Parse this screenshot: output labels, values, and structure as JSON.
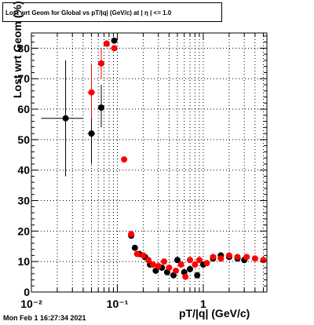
{
  "title": "Lost wrt Geom for Global vs pT/|q| (GeV/c) at | η | <= 1.0",
  "datestamp": "Mon Feb  1 16:27:34 2021",
  "colors": {
    "series_black": "#000000",
    "series_red": "#ff0000",
    "grid": "#000000"
  },
  "chart_data": {
    "type": "scatter",
    "title": "Lost wrt Geom for Global vs pT/|q| (GeV/c) at | η | <= 1.0",
    "xlabel": "pT/|q| (GeV/c)",
    "ylabel": "Lost wrt Geom (%)",
    "xscale": "log",
    "xlim": [
      0.01,
      5.5
    ],
    "ylim": [
      0,
      85
    ],
    "grid": true,
    "x_tick_labels": [
      "10⁻²",
      "10⁻¹",
      "1"
    ],
    "y_tick_labels": [
      "0",
      "10",
      "20",
      "30",
      "40",
      "50",
      "60",
      "70",
      "80"
    ],
    "series": [
      {
        "color": "#000000",
        "points": [
          {
            "x": 0.025,
            "y": 57.0,
            "xerr": [
              0.013,
              0.04
            ],
            "yerr": [
              38,
              76
            ]
          },
          {
            "x": 0.05,
            "y": 52.0,
            "xerr": [
              0.045,
              0.055
            ],
            "yerr": [
              42,
              62
            ]
          },
          {
            "x": 0.065,
            "y": 60.5,
            "xerr": [
              0.06,
              0.07
            ],
            "yerr": [
              54,
              68
            ]
          },
          {
            "x": 0.075,
            "y": 81.5
          },
          {
            "x": 0.092,
            "y": 82.5
          },
          {
            "x": 0.145,
            "y": 18.5
          },
          {
            "x": 0.16,
            "y": 14.5
          },
          {
            "x": 0.18,
            "y": 12.5
          },
          {
            "x": 0.21,
            "y": 11.5
          },
          {
            "x": 0.24,
            "y": 9.0
          },
          {
            "x": 0.28,
            "y": 7.0
          },
          {
            "x": 0.33,
            "y": 8.0
          },
          {
            "x": 0.38,
            "y": 6.5
          },
          {
            "x": 0.45,
            "y": 5.5
          },
          {
            "x": 0.5,
            "y": 10.5
          },
          {
            "x": 0.6,
            "y": 6.5
          },
          {
            "x": 0.7,
            "y": 7.5
          },
          {
            "x": 0.85,
            "y": 5.5
          },
          {
            "x": 1.0,
            "y": 9.0
          },
          {
            "x": 1.3,
            "y": 11.0
          },
          {
            "x": 1.6,
            "y": 12.0
          },
          {
            "x": 2.0,
            "y": 11.5
          },
          {
            "x": 2.5,
            "y": 11.0
          },
          {
            "x": 3.0,
            "y": 10.5
          }
        ]
      },
      {
        "color": "#ff0000",
        "points": [
          {
            "x": 0.05,
            "y": 65.5,
            "xerr": [
              0.045,
              0.055
            ],
            "yerr": [
              57,
              75
            ]
          },
          {
            "x": 0.065,
            "y": 75.0,
            "xerr": [
              0.06,
              0.07
            ],
            "yerr": [
              70,
              80
            ]
          },
          {
            "x": 0.075,
            "y": 81.5
          },
          {
            "x": 0.092,
            "y": 80.0
          },
          {
            "x": 0.12,
            "y": 43.5
          },
          {
            "x": 0.145,
            "y": 19.0
          },
          {
            "x": 0.17,
            "y": 12.5
          },
          {
            "x": 0.2,
            "y": 12.0
          },
          {
            "x": 0.23,
            "y": 10.5
          },
          {
            "x": 0.26,
            "y": 9.0
          },
          {
            "x": 0.3,
            "y": 8.5
          },
          {
            "x": 0.35,
            "y": 10.0
          },
          {
            "x": 0.4,
            "y": 8.0
          },
          {
            "x": 0.48,
            "y": 7.0
          },
          {
            "x": 0.55,
            "y": 9.0
          },
          {
            "x": 0.62,
            "y": 5.0
          },
          {
            "x": 0.7,
            "y": 10.5
          },
          {
            "x": 0.8,
            "y": 9.0
          },
          {
            "x": 0.9,
            "y": 10.5
          },
          {
            "x": 1.1,
            "y": 9.5
          },
          {
            "x": 1.3,
            "y": 11.5
          },
          {
            "x": 1.6,
            "y": 11.0
          },
          {
            "x": 2.0,
            "y": 12.0
          },
          {
            "x": 2.5,
            "y": 11.5
          },
          {
            "x": 3.2,
            "y": 11.5
          },
          {
            "x": 4.0,
            "y": 11.0
          },
          {
            "x": 5.0,
            "y": 10.5
          }
        ]
      }
    ]
  }
}
